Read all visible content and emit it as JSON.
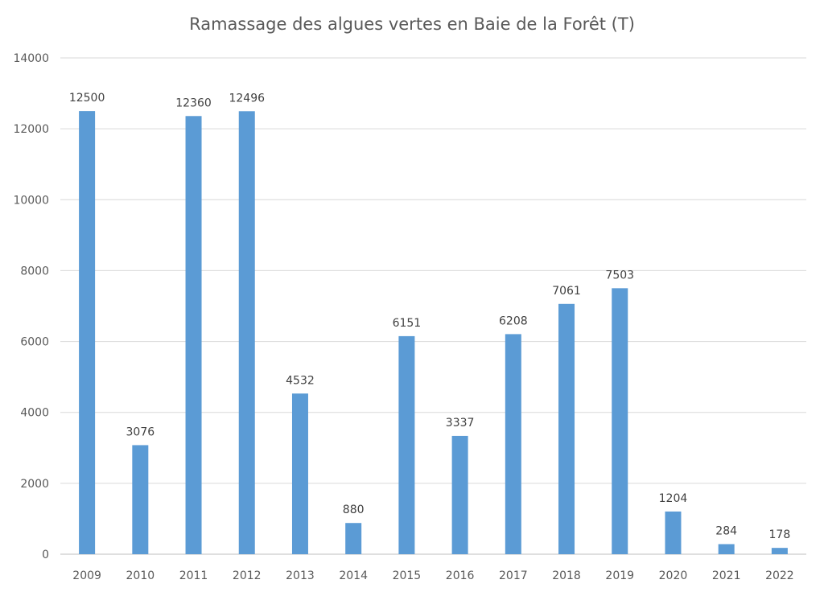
{
  "chart_data": {
    "type": "bar",
    "title": "Ramassage des algues vertes en Baie de la Forêt (T)",
    "xlabel": "",
    "ylabel": "",
    "categories": [
      "2009",
      "2010",
      "2011",
      "2012",
      "2013",
      "2014",
      "2015",
      "2016",
      "2017",
      "2018",
      "2019",
      "2020",
      "2021",
      "2022"
    ],
    "values": [
      12500,
      3076,
      12360,
      12496,
      4532,
      880,
      6151,
      3337,
      6208,
      7061,
      7503,
      1204,
      284,
      178
    ],
    "ylim": [
      0,
      14000
    ],
    "yticks": [
      0,
      2000,
      4000,
      6000,
      8000,
      10000,
      12000,
      14000
    ],
    "grid": true,
    "legend": "none",
    "data_labels": true,
    "colors": {
      "bar": "#5b9bd5",
      "grid": "#d9d9d9",
      "text": "#595959"
    }
  }
}
